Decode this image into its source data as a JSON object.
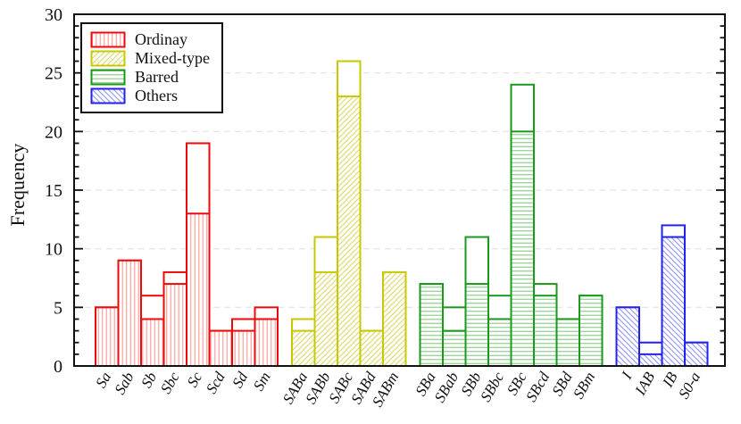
{
  "chart_data": {
    "type": "bar",
    "title": "",
    "xlabel": "",
    "ylabel": "Frequency",
    "ylim": [
      0,
      30
    ],
    "yticks": [
      0,
      5,
      10,
      15,
      20,
      25,
      30
    ],
    "minor_tick_step": 1,
    "grid": {
      "horizontal_at": [
        5,
        10,
        15,
        20,
        25
      ],
      "style": "dashed",
      "color": "#e7e7e7"
    },
    "legend": {
      "position": "upper-left"
    },
    "axis_color": "#111111",
    "groups": [
      {
        "name": "Ordinay",
        "color": "#ee0a0a",
        "hatch_color": "#ff9f9f",
        "hatch": "vertical",
        "categories": [
          "Sa",
          "Sab",
          "Sb",
          "Sbc",
          "Sc",
          "Scd",
          "Sd",
          "Sm"
        ],
        "hatched_values": [
          5,
          9,
          4,
          7,
          13,
          3,
          3,
          4
        ],
        "open_values": [
          5,
          9,
          6,
          8,
          19,
          3,
          4,
          5
        ]
      },
      {
        "name": "Mixed-type",
        "color": "#c8c800",
        "hatch_color": "#dcdc78",
        "hatch": "diag-up",
        "categories": [
          "SABa",
          "SABb",
          "SABc",
          "SABd",
          "SABm"
        ],
        "hatched_values": [
          3,
          8,
          23,
          3,
          8
        ],
        "open_values": [
          4,
          11,
          26,
          3,
          8
        ]
      },
      {
        "name": "Barred",
        "color": "#1a991a",
        "hatch_color": "#8ccf8c",
        "hatch": "horizontal",
        "categories": [
          "SBa",
          "SBab",
          "SBb",
          "SBbc",
          "SBc",
          "SBcd",
          "SBd",
          "SBm"
        ],
        "hatched_values": [
          7,
          3,
          7,
          4,
          20,
          6,
          4,
          6
        ],
        "open_values": [
          7,
          5,
          11,
          6,
          24,
          7,
          4,
          6
        ]
      },
      {
        "name": "Others",
        "color": "#2222ee",
        "hatch_color": "#9c9cf5",
        "hatch": "diag-down",
        "categories": [
          "I",
          "IAB",
          "IB",
          "S0-a"
        ],
        "hatched_values": [
          5,
          1,
          11,
          2
        ],
        "open_values": [
          5,
          2,
          12,
          2
        ]
      }
    ]
  }
}
